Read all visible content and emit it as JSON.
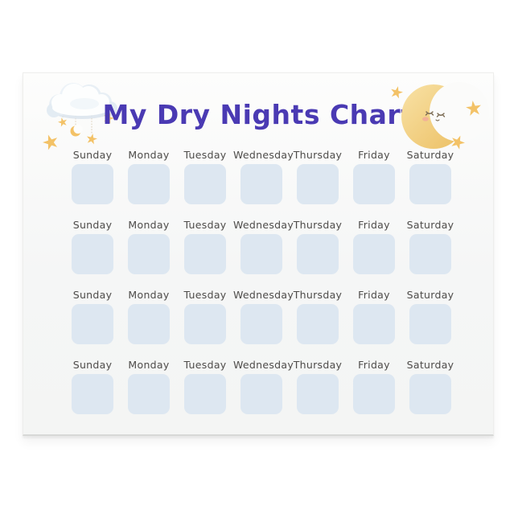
{
  "page": {
    "title": "My Dry Nights Chart"
  },
  "chart": {
    "day_labels": [
      "Sunday",
      "Monday",
      "Tuesday",
      "Wednesday",
      "Thursday",
      "Friday",
      "Saturday"
    ],
    "weeks": 4,
    "square_state": "empty"
  },
  "decorations": {
    "left_illustration": "cloud-with-hanging-moon-and-stars",
    "right_illustration": "sleeping-crescent-moon-with-stars"
  },
  "colors": {
    "accent": "#4a3ab3",
    "square": "#dde7f1",
    "star": "#f3c267",
    "moon_light": "#f7dfa0",
    "moon_dark": "#edc167",
    "page_bg": "#fbfbfa",
    "label_text": "#4e4c4a"
  }
}
